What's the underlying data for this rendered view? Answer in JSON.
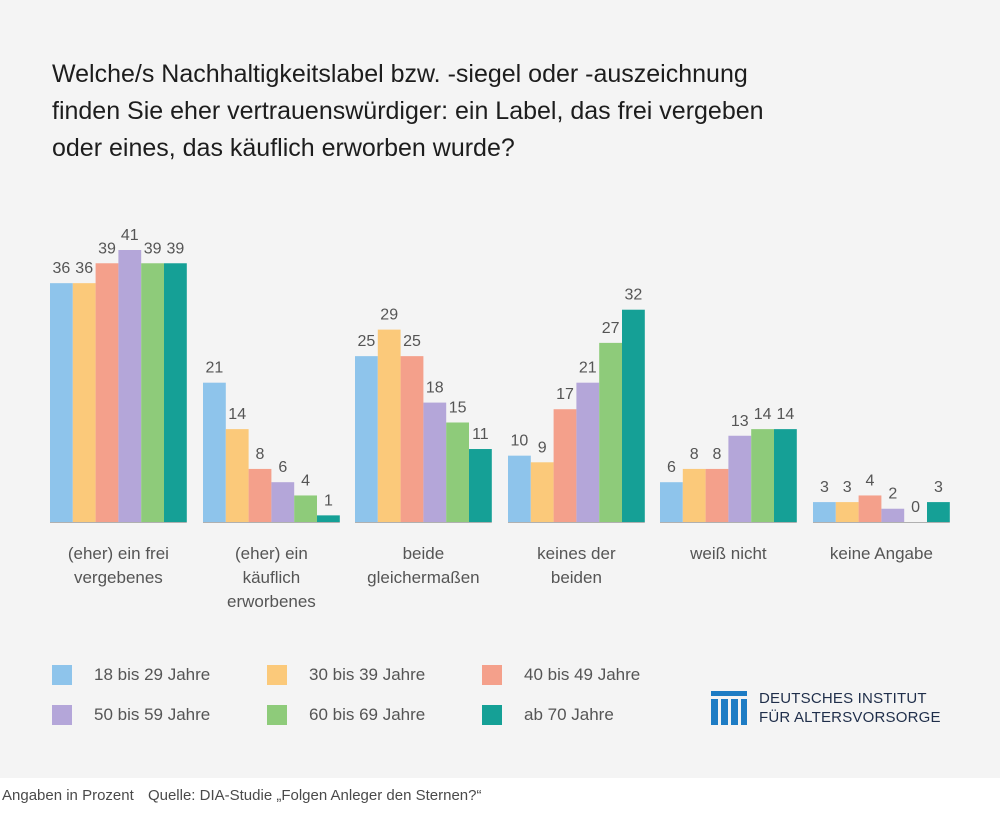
{
  "title_lines": [
    "Welche/s Nachhaltigkeitslabel bzw. -siegel oder -auszeichnung",
    "finden Sie eher vertrauenswürdiger: ein Label, das frei vergeben",
    "oder eines, das käuflich erworben wurde?"
  ],
  "logo": {
    "icon": "institute-logo-icon",
    "line1": "DEUTSCHES INSTITUT",
    "line2": "FÜR ALTERSVORSORGE"
  },
  "footer": {
    "unit_note": "Angaben in Prozent",
    "source": "Quelle: DIA-Studie „Folgen Anleger den Sternen?“"
  },
  "chart_data": {
    "type": "bar",
    "categories": [
      [
        "(eher) ein frei",
        "vergebenes"
      ],
      [
        "(eher) ein",
        "käuflich",
        "erworbenes"
      ],
      [
        "beide",
        "gleichermaßen"
      ],
      [
        "keines der",
        "beiden"
      ],
      [
        "weiß nicht"
      ],
      [
        "keine Angabe"
      ]
    ],
    "series": [
      {
        "name": "18 bis 29 Jahre",
        "color": "#8ec4eb",
        "values": [
          36,
          21,
          25,
          10,
          6,
          3
        ]
      },
      {
        "name": "30 bis 39 Jahre",
        "color": "#fbc97a",
        "values": [
          36,
          14,
          29,
          9,
          8,
          3
        ]
      },
      {
        "name": "40 bis 49 Jahre",
        "color": "#f4a08b",
        "values": [
          39,
          8,
          25,
          17,
          8,
          4
        ]
      },
      {
        "name": "50 bis 59 Jahre",
        "color": "#b4a6d9",
        "values": [
          41,
          6,
          18,
          21,
          13,
          2
        ]
      },
      {
        "name": "60 bis 69 Jahre",
        "color": "#8ecb7a",
        "values": [
          39,
          4,
          15,
          27,
          14,
          0
        ]
      },
      {
        "name": "ab 70 Jahre",
        "color": "#15a096",
        "values": [
          39,
          1,
          11,
          32,
          14,
          3
        ]
      }
    ],
    "ylim": [
      0,
      41
    ],
    "grid": false,
    "legend_position": "bottom-left",
    "axis_color": "#b0b0b0",
    "label_color": "#555555"
  }
}
